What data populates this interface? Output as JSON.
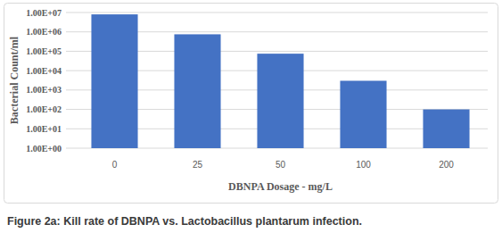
{
  "chart_data": {
    "type": "bar",
    "title": "Figure 2a: Kill rate of DBNPA vs. Lactobacillus plantarum infection.",
    "x_label": "DBNPA Dosage - mg/L",
    "y_label": "Bacterial Count/ml",
    "categories": [
      "0",
      "25",
      "50",
      "100",
      "200"
    ],
    "values": [
      8000000,
      750000,
      75000,
      3000,
      100
    ],
    "color": "#4472c4",
    "log": "y",
    "ylim": [
      1,
      10000000
    ],
    "yticks": [
      {
        "value": 1,
        "label": "1.00E+00"
      },
      {
        "value": 10,
        "label": "1.00E+01"
      },
      {
        "value": 100,
        "label": "1.00E+02"
      },
      {
        "value": 1000,
        "label": "1.00E+03"
      },
      {
        "value": 10000,
        "label": "1.00E+04"
      },
      {
        "value": 100000,
        "label": "1.00E+05"
      },
      {
        "value": 1000000,
        "label": "1.00E+06"
      },
      {
        "value": 10000000,
        "label": "1.00E+07"
      }
    ],
    "grid": true
  }
}
